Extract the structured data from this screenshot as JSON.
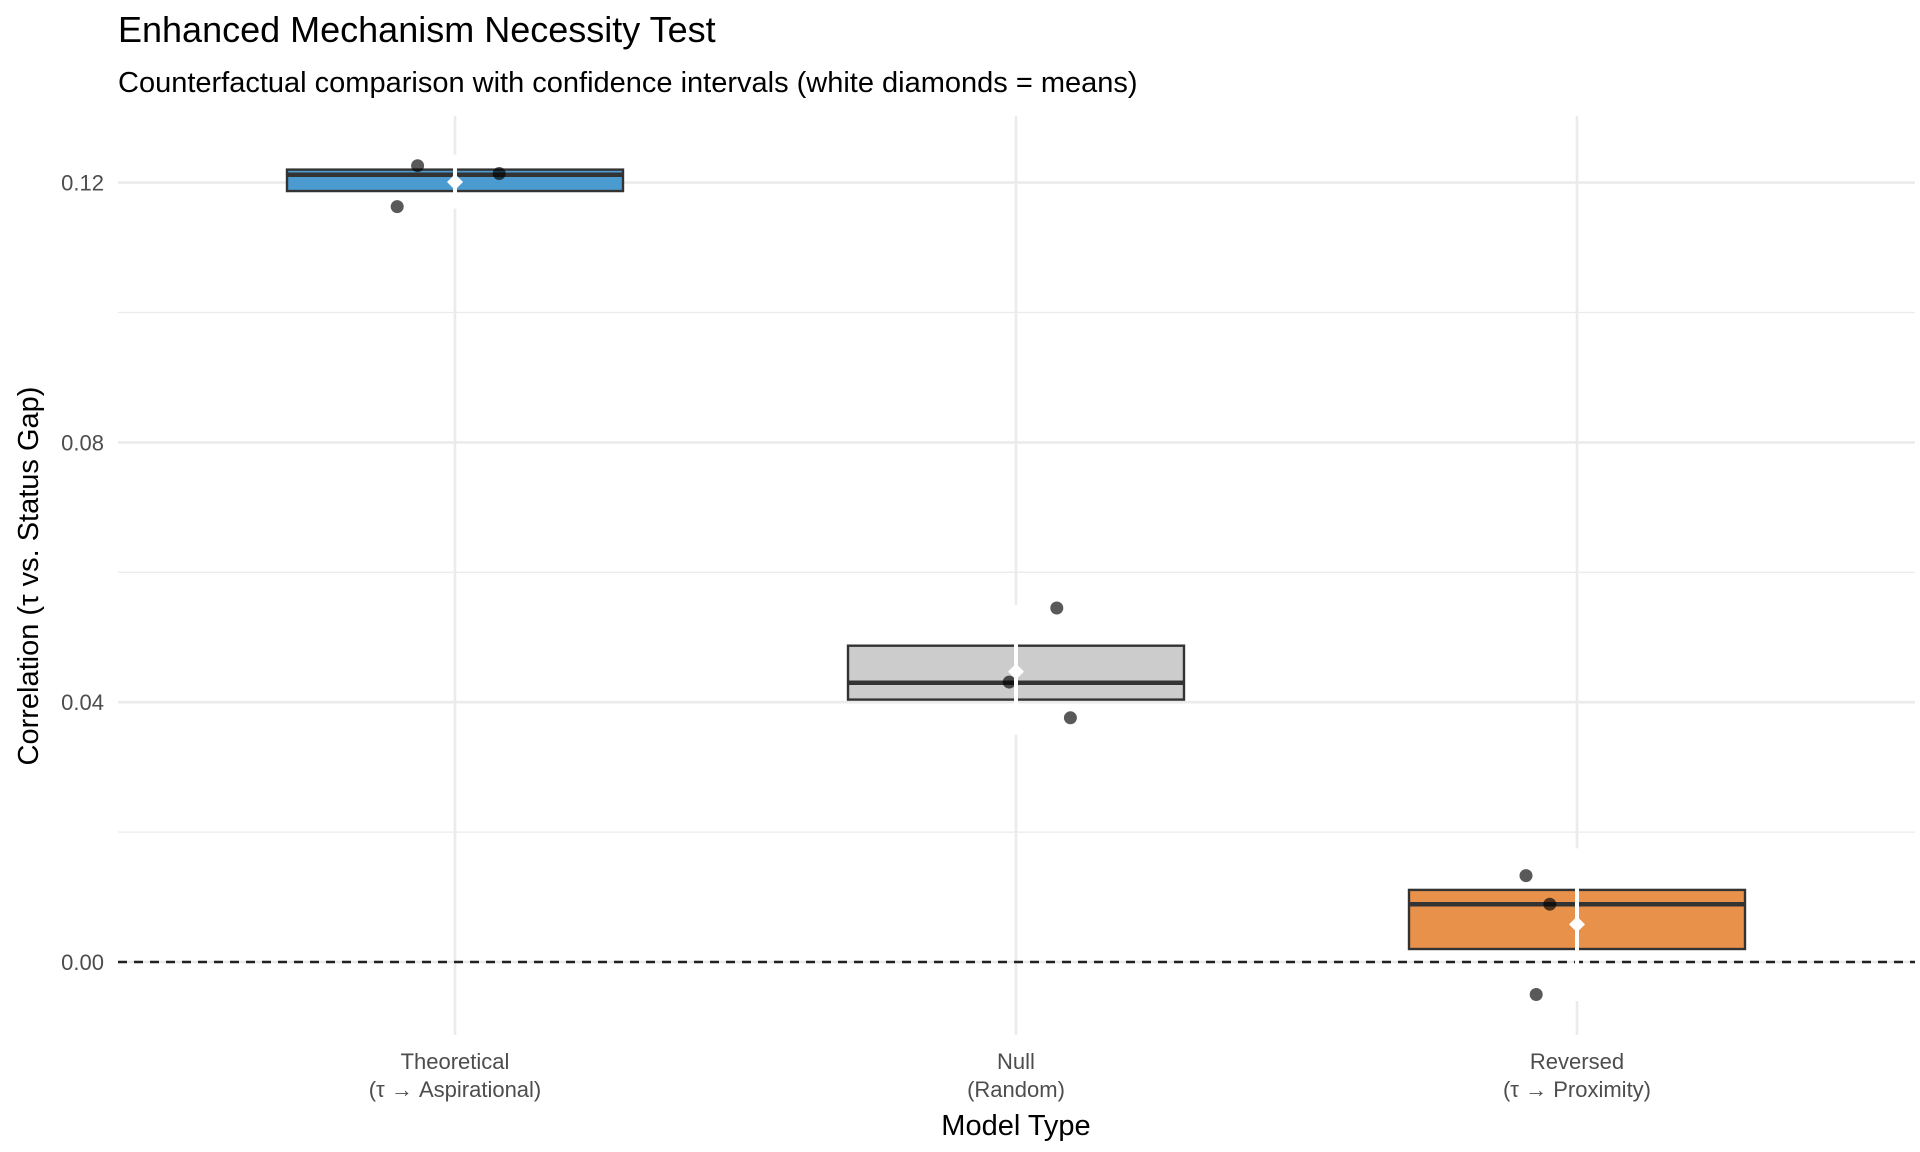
{
  "chart_data": {
    "type": "box",
    "title": "Enhanced Mechanism Necessity Test",
    "subtitle": "Counterfactual comparison with confidence intervals (white diamonds = means)",
    "xlabel": "Model Type",
    "ylabel": "Correlation (τ vs. Status Gap)",
    "ylim": [
      -0.011,
      0.1305
    ],
    "y_ticks": [
      0.0,
      0.04,
      0.08,
      0.12
    ],
    "y_tick_labels": [
      "0.00",
      "0.04",
      "0.08",
      "0.12"
    ],
    "grid": true,
    "reference_line": {
      "y": 0.0,
      "style": "dashed"
    },
    "categories": [
      {
        "label_line1": "Theoretical",
        "label_line2": "(τ → Aspirational)"
      },
      {
        "label_line1": "Null",
        "label_line2": "(Random)"
      },
      {
        "label_line1": "Reversed",
        "label_line2": "(τ → Proximity)"
      }
    ],
    "boxes": [
      {
        "q1": 0.1187,
        "median": 0.1212,
        "q3": 0.122,
        "mean": 0.1201,
        "ci_low": 0.116,
        "ci_high": 0.1243,
        "fill": "#4b9bd1",
        "points": [
          {
            "x_offset": -0.17,
            "y": 0.1163
          },
          {
            "x_offset": -0.11,
            "y": 0.1226
          },
          {
            "x_offset": 0.13,
            "y": 0.1214
          }
        ]
      },
      {
        "q1": 0.0404,
        "median": 0.043,
        "q3": 0.0487,
        "mean": 0.0447,
        "ci_low": 0.035,
        "ci_high": 0.055,
        "fill": "#cccccc",
        "points": [
          {
            "x_offset": -0.02,
            "y": 0.0431
          },
          {
            "x_offset": 0.12,
            "y": 0.0545
          },
          {
            "x_offset": 0.16,
            "y": 0.0376
          }
        ]
      },
      {
        "q1": 0.002,
        "median": 0.0089,
        "q3": 0.0111,
        "mean": 0.0058,
        "ci_low": -0.006,
        "ci_high": 0.0175,
        "fill": "#e8914b",
        "points": [
          {
            "x_offset": -0.15,
            "y": 0.0133
          },
          {
            "x_offset": -0.08,
            "y": 0.0089
          },
          {
            "x_offset": -0.12,
            "y": -0.005
          }
        ]
      }
    ]
  }
}
